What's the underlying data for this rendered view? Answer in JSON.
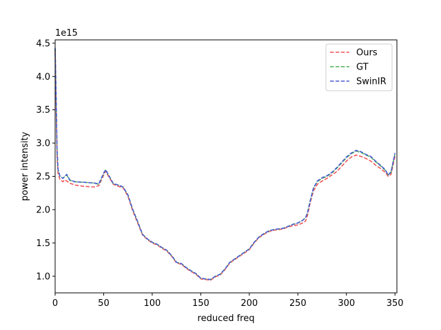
{
  "chart_data": {
    "type": "line",
    "xlabel": "reduced freq",
    "ylabel": "power intensity",
    "offset_text": "1e15",
    "xlim": [
      0,
      352
    ],
    "ylim": [
      0.75,
      4.55
    ],
    "x_ticks": [
      0,
      50,
      100,
      150,
      200,
      250,
      300,
      350
    ],
    "y_ticks": [
      1.0,
      1.5,
      2.0,
      2.5,
      3.0,
      3.5,
      4.0,
      4.5
    ],
    "y_tick_labels": [
      "1.0",
      "1.5",
      "2.0",
      "2.5",
      "3.0",
      "3.5",
      "4.0",
      "4.5"
    ],
    "grid": false,
    "legend": "top-right",
    "series": [
      {
        "name": "Ours",
        "color": "#f0555a",
        "dash": "dashed",
        "x": [
          0,
          1,
          2,
          3,
          5,
          8,
          10,
          15,
          20,
          30,
          40,
          45,
          50,
          52,
          55,
          60,
          65,
          70,
          75,
          80,
          85,
          90,
          95,
          100,
          105,
          110,
          115,
          120,
          125,
          130,
          135,
          140,
          145,
          150,
          155,
          160,
          165,
          170,
          175,
          180,
          185,
          190,
          195,
          200,
          205,
          210,
          215,
          220,
          225,
          230,
          235,
          240,
          245,
          250,
          255,
          258,
          260,
          263,
          266,
          270,
          275,
          280,
          285,
          290,
          295,
          300,
          305,
          310,
          315,
          320,
          325,
          330,
          335,
          340,
          343,
          346,
          350
        ],
        "y": [
          4.38,
          3.6,
          2.8,
          2.55,
          2.45,
          2.42,
          2.45,
          2.4,
          2.37,
          2.35,
          2.34,
          2.36,
          2.52,
          2.58,
          2.5,
          2.38,
          2.35,
          2.33,
          2.2,
          1.98,
          1.8,
          1.62,
          1.55,
          1.5,
          1.47,
          1.42,
          1.38,
          1.3,
          1.2,
          1.18,
          1.12,
          1.07,
          1.03,
          0.96,
          0.95,
          0.94,
          0.99,
          1.02,
          1.1,
          1.2,
          1.25,
          1.3,
          1.35,
          1.4,
          1.5,
          1.58,
          1.63,
          1.67,
          1.69,
          1.7,
          1.71,
          1.74,
          1.76,
          1.77,
          1.8,
          1.83,
          1.92,
          2.12,
          2.28,
          2.38,
          2.43,
          2.47,
          2.52,
          2.57,
          2.65,
          2.73,
          2.79,
          2.82,
          2.8,
          2.77,
          2.73,
          2.67,
          2.62,
          2.56,
          2.5,
          2.53,
          2.8
        ]
      },
      {
        "name": "GT",
        "color": "#4caf50",
        "dash": "dashed",
        "x": [
          0,
          1,
          2,
          3,
          5,
          8,
          10,
          12,
          15,
          20,
          30,
          40,
          45,
          50,
          52,
          55,
          60,
          65,
          70,
          75,
          80,
          85,
          90,
          95,
          100,
          105,
          110,
          115,
          120,
          125,
          130,
          135,
          140,
          145,
          150,
          155,
          160,
          165,
          170,
          175,
          180,
          185,
          190,
          195,
          200,
          205,
          210,
          215,
          220,
          225,
          230,
          235,
          240,
          245,
          250,
          255,
          258,
          260,
          263,
          266,
          270,
          275,
          280,
          285,
          290,
          295,
          300,
          305,
          310,
          315,
          320,
          325,
          330,
          335,
          340,
          343,
          346,
          350
        ],
        "y": [
          4.42,
          3.7,
          2.9,
          2.6,
          2.5,
          2.47,
          2.5,
          2.52,
          2.44,
          2.42,
          2.41,
          2.4,
          2.38,
          2.54,
          2.6,
          2.52,
          2.39,
          2.37,
          2.34,
          2.22,
          2.0,
          1.82,
          1.63,
          1.56,
          1.51,
          1.48,
          1.43,
          1.39,
          1.31,
          1.21,
          1.19,
          1.13,
          1.08,
          1.04,
          0.97,
          0.96,
          0.95,
          1.0,
          1.03,
          1.11,
          1.21,
          1.26,
          1.31,
          1.36,
          1.41,
          1.51,
          1.59,
          1.64,
          1.68,
          1.7,
          1.71,
          1.72,
          1.75,
          1.78,
          1.8,
          1.84,
          1.88,
          1.96,
          2.15,
          2.32,
          2.42,
          2.47,
          2.5,
          2.55,
          2.62,
          2.7,
          2.78,
          2.84,
          2.88,
          2.86,
          2.82,
          2.79,
          2.72,
          2.66,
          2.59,
          2.52,
          2.56,
          2.84
        ]
      },
      {
        "name": "SwinIR",
        "color": "#4a5bd4",
        "dash": "dashed",
        "x": [
          0,
          1,
          2,
          3,
          5,
          8,
          10,
          12,
          15,
          20,
          30,
          40,
          45,
          50,
          52,
          55,
          60,
          65,
          70,
          75,
          80,
          85,
          90,
          95,
          100,
          105,
          110,
          115,
          120,
          125,
          130,
          135,
          140,
          145,
          150,
          155,
          160,
          165,
          170,
          175,
          180,
          185,
          190,
          195,
          200,
          205,
          210,
          215,
          220,
          225,
          230,
          235,
          240,
          245,
          250,
          255,
          258,
          260,
          263,
          266,
          270,
          275,
          280,
          285,
          290,
          295,
          300,
          305,
          310,
          315,
          320,
          325,
          330,
          335,
          340,
          343,
          346,
          350
        ],
        "y": [
          4.43,
          3.72,
          2.9,
          2.61,
          2.5,
          2.47,
          2.5,
          2.53,
          2.45,
          2.42,
          2.41,
          2.4,
          2.39,
          2.55,
          2.6,
          2.52,
          2.39,
          2.37,
          2.34,
          2.22,
          2.0,
          1.82,
          1.63,
          1.56,
          1.51,
          1.48,
          1.43,
          1.39,
          1.31,
          1.21,
          1.19,
          1.13,
          1.08,
          1.04,
          0.97,
          0.96,
          0.95,
          1.0,
          1.03,
          1.11,
          1.21,
          1.26,
          1.31,
          1.36,
          1.41,
          1.51,
          1.59,
          1.64,
          1.68,
          1.7,
          1.71,
          1.72,
          1.75,
          1.78,
          1.8,
          1.84,
          1.88,
          1.96,
          2.15,
          2.32,
          2.43,
          2.48,
          2.51,
          2.56,
          2.63,
          2.71,
          2.79,
          2.85,
          2.89,
          2.87,
          2.83,
          2.8,
          2.73,
          2.67,
          2.6,
          2.52,
          2.57,
          2.85
        ]
      }
    ]
  }
}
